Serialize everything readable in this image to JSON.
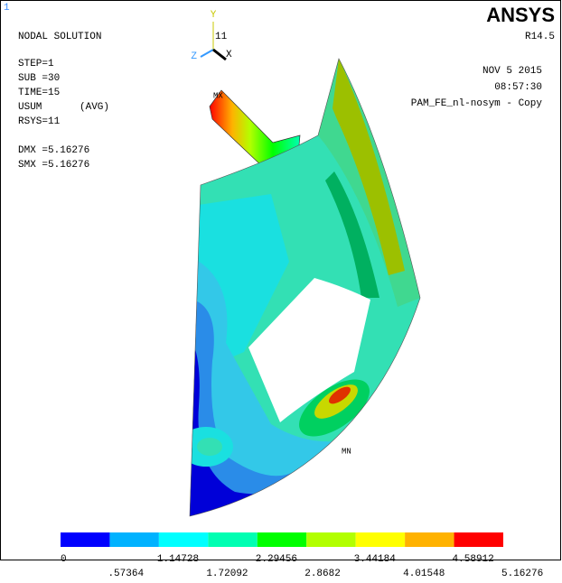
{
  "window_number": "1",
  "info": {
    "title": "NODAL SOLUTION",
    "step": "STEP=1",
    "sub": "SUB =30",
    "time": "TIME=15",
    "item": "USUM",
    "avg": "(AVG)",
    "rsys": "RSYS=11",
    "dmx": "DMX =5.16276",
    "smx": "SMX =5.16276"
  },
  "header": {
    "brand": "ANSYS",
    "release": "R14.5",
    "date": "NOV  5 2015",
    "time": "08:57:30",
    "jobname": "PAM_FE_nl-nosym - Copy"
  },
  "triad": {
    "y": "Y",
    "z": "Z",
    "x": "X",
    "csys": "11"
  },
  "markers": {
    "max": "MX",
    "min": "MN"
  },
  "legend": {
    "colors": [
      "#0000ff",
      "#00b2ff",
      "#00ffff",
      "#00ffb2",
      "#00ff00",
      "#b2ff00",
      "#ffff00",
      "#ffb200",
      "#ff0000"
    ],
    "labels": [
      "0",
      ".57364",
      "1.14728",
      "1.72092",
      "2.29456",
      "2.8682",
      "3.44184",
      "4.01548",
      "4.58912",
      "5.16276"
    ]
  }
}
